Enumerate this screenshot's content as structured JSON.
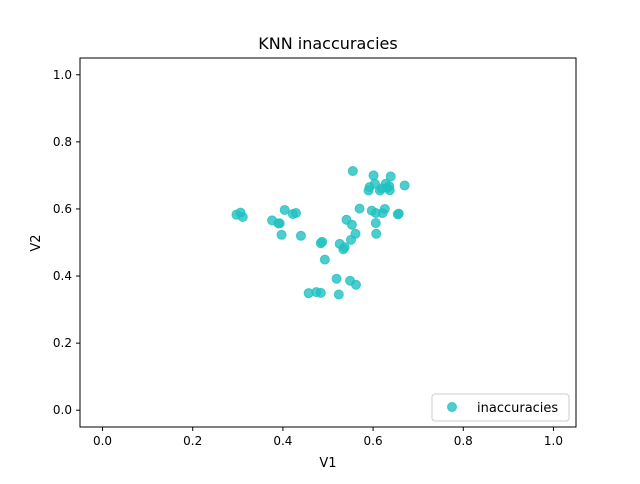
{
  "chart_data": {
    "type": "scatter",
    "title": "KNN inaccuracies",
    "xlabel": "V1",
    "ylabel": "V2",
    "xlim": [
      -0.05,
      1.05
    ],
    "ylim": [
      -0.05,
      1.05
    ],
    "xticks": [
      "0.0",
      "0.2",
      "0.4",
      "0.6",
      "0.8",
      "1.0"
    ],
    "yticks": [
      "0.0",
      "0.2",
      "0.4",
      "0.6",
      "0.8",
      "1.0"
    ],
    "grid": false,
    "legend_position": "lower-right",
    "series": [
      {
        "name": "inaccuracies",
        "color": "#20c0c0",
        "points": [
          [
            0.297,
            0.583
          ],
          [
            0.306,
            0.589
          ],
          [
            0.311,
            0.576
          ],
          [
            0.376,
            0.566
          ],
          [
            0.39,
            0.557
          ],
          [
            0.393,
            0.557
          ],
          [
            0.397,
            0.523
          ],
          [
            0.404,
            0.597
          ],
          [
            0.422,
            0.585
          ],
          [
            0.429,
            0.588
          ],
          [
            0.44,
            0.52
          ],
          [
            0.484,
            0.498
          ],
          [
            0.487,
            0.502
          ],
          [
            0.493,
            0.449
          ],
          [
            0.457,
            0.349
          ],
          [
            0.474,
            0.352
          ],
          [
            0.484,
            0.35
          ],
          [
            0.519,
            0.392
          ],
          [
            0.524,
            0.345
          ],
          [
            0.526,
            0.496
          ],
          [
            0.534,
            0.48
          ],
          [
            0.537,
            0.486
          ],
          [
            0.541,
            0.568
          ],
          [
            0.549,
            0.386
          ],
          [
            0.551,
            0.508
          ],
          [
            0.553,
            0.553
          ],
          [
            0.555,
            0.713
          ],
          [
            0.561,
            0.526
          ],
          [
            0.562,
            0.374
          ],
          [
            0.57,
            0.601
          ],
          [
            0.59,
            0.655
          ],
          [
            0.592,
            0.665
          ],
          [
            0.597,
            0.595
          ],
          [
            0.601,
            0.7
          ],
          [
            0.604,
            0.675
          ],
          [
            0.606,
            0.588
          ],
          [
            0.606,
            0.558
          ],
          [
            0.607,
            0.526
          ],
          [
            0.615,
            0.655
          ],
          [
            0.619,
            0.661
          ],
          [
            0.621,
            0.588
          ],
          [
            0.626,
            0.6
          ],
          [
            0.628,
            0.675
          ],
          [
            0.631,
            0.663
          ],
          [
            0.636,
            0.668
          ],
          [
            0.637,
            0.656
          ],
          [
            0.639,
            0.697
          ],
          [
            0.655,
            0.584
          ],
          [
            0.657,
            0.586
          ],
          [
            0.67,
            0.67
          ]
        ]
      }
    ]
  }
}
